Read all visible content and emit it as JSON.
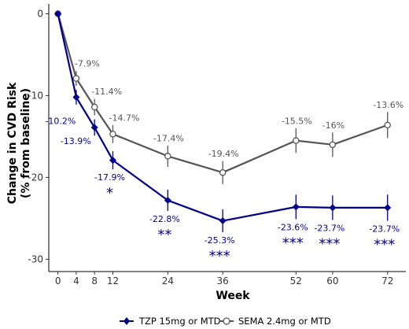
{
  "chart_data": {
    "type": "line",
    "xlabel": "Week",
    "ylabel_line1": "Change in CVD Risk",
    "ylabel_line2": "(% from baseline)",
    "x": [
      0,
      4,
      8,
      12,
      24,
      36,
      52,
      60,
      72
    ],
    "x_tick_labels": [
      "0",
      "4",
      "8",
      "12",
      "24",
      "36",
      "52",
      "60",
      "72"
    ],
    "xlim": [
      -2,
      76
    ],
    "ylim": [
      -31.5,
      1.2
    ],
    "y_ticks": [
      0,
      -10,
      -20,
      -30
    ],
    "y_tick_labels": [
      "0",
      "-10",
      "-20",
      "-30"
    ],
    "grid": false,
    "legend_position": "bottom",
    "series": [
      {
        "name": "TZP 15mg or MTD",
        "color": "#00008b",
        "marker": "diamond",
        "values": [
          0,
          -10.2,
          -13.9,
          -17.9,
          -22.8,
          -25.3,
          -23.6,
          -23.7,
          -23.7
        ],
        "error": [
          0,
          0.9,
          1.0,
          1.1,
          1.3,
          1.4,
          1.5,
          1.5,
          1.6
        ],
        "labels": [
          "",
          "-10.2%",
          "-13.9%",
          "-17.9%",
          "-22.8%",
          "-25.3%",
          "-23.6%",
          "-23.7%",
          "-23.7%"
        ],
        "significance": [
          "",
          "",
          "",
          "*",
          "**",
          "***",
          "***",
          "***",
          "***"
        ]
      },
      {
        "name": "SEMA 2.4mg or MTD",
        "color": "#555555",
        "marker": "open-circle",
        "values": [
          0,
          -7.9,
          -11.4,
          -14.7,
          -17.4,
          -19.4,
          -15.5,
          -16,
          -13.6
        ],
        "error": [
          0,
          0.9,
          1.0,
          1.1,
          1.3,
          1.4,
          1.5,
          1.5,
          1.6
        ],
        "labels": [
          "",
          "-7.9%",
          "-11.4%",
          "-14.7%",
          "-17.4%",
          "-19.4%",
          "-15.5%",
          "-16%",
          "-13.6%"
        ]
      }
    ]
  }
}
